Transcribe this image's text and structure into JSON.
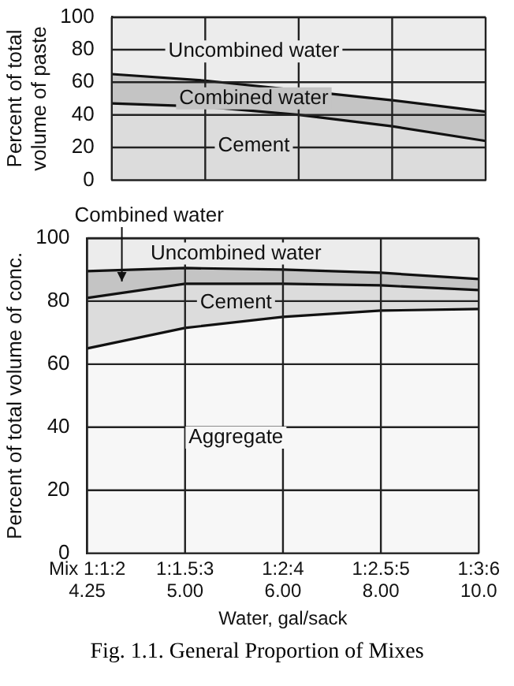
{
  "chart_data": [
    {
      "type": "area",
      "stacked": true,
      "ylabel": "Percent of total volume of paste",
      "categories": [
        null,
        null,
        null,
        null,
        null
      ],
      "ylim": [
        0,
        100
      ],
      "yticks": [
        0,
        20,
        40,
        60,
        80,
        100
      ],
      "grid": true,
      "tick_labels": "y",
      "series": [
        {
          "name": "Cement",
          "color": "#dcdcdc",
          "values": [
            47,
            45,
            40,
            33,
            24
          ]
        },
        {
          "name": "Combined water",
          "color": "#c4c4c4",
          "values": [
            18,
            16,
            15,
            16,
            18
          ]
        },
        {
          "name": "Uncombined water",
          "color": "#ececec",
          "values": [
            35,
            39,
            45,
            51,
            58
          ]
        }
      ]
    },
    {
      "type": "area",
      "stacked": true,
      "ylabel": "Percent of total volume of conc.",
      "xlabel": "Water, gal/sack",
      "categories": [
        "Mix 1:1:2\n4.25",
        "1:1.5:3\n5.00",
        "1:2:4\n6.00",
        "1:2.5:5\n8.00",
        "1:3:6\n10.0"
      ],
      "ylim": [
        0,
        100
      ],
      "yticks": [
        0,
        20,
        40,
        60,
        80,
        100
      ],
      "grid": true,
      "annotations": [
        "Fig. 1.1. General Proportion of Mixes"
      ],
      "series": [
        {
          "name": "Aggregate",
          "color": "#f7f7f7",
          "values": [
            65,
            71.5,
            75,
            77,
            77.5
          ]
        },
        {
          "name": "Cement",
          "color": "#dcdcdc",
          "values": [
            16,
            14,
            10.5,
            8,
            6
          ]
        },
        {
          "name": "Combined water",
          "color": "#c4c4c4",
          "values": [
            8.5,
            5,
            4.5,
            4,
            3.5
          ]
        },
        {
          "name": "Uncombined water",
          "color": "#ececec",
          "values": [
            10.5,
            9.5,
            10,
            11,
            13
          ]
        }
      ]
    }
  ]
}
